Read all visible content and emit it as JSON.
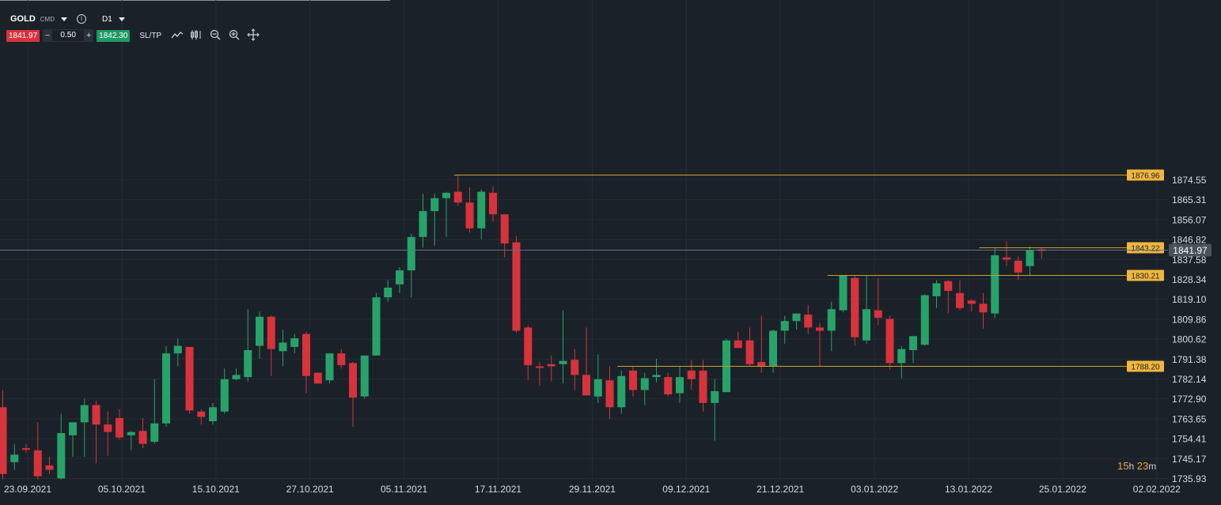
{
  "toolbar": {
    "symbol": "GOLD",
    "instrument_type": "CMD",
    "timeframe": "D1",
    "sell_price": "1841.97",
    "quantity": "0.50",
    "buy_price": "1842.30",
    "sl_tp_label": "SL/TP",
    "tools": [
      "line-chart-icon",
      "indicators-icon",
      "zoom-out-icon",
      "zoom-in-icon",
      "crosshair-icon"
    ]
  },
  "colors": {
    "background": "#1b2129",
    "bull": "#27a36a",
    "bear": "#d8333c",
    "level": "#c9a12a",
    "level_label_bg": "#f0b63d",
    "current_price_label_bg": "#4a525c",
    "grid": "#252c35"
  },
  "countdown": {
    "hours": "15",
    "minutes": "23",
    "h_unit": "h",
    "m_unit": "m"
  },
  "chart_data": {
    "type": "candlestick",
    "y_axis": {
      "range": [
        1735.93,
        1879.5
      ],
      "ticks": [
        "1874.55",
        "1865.31",
        "1856.07",
        "1846.82",
        "1837.58",
        "1828.34",
        "1819.10",
        "1809.86",
        "1800.62",
        "1791.38",
        "1782.14",
        "1772.90",
        "1763.65",
        "1754.41",
        "1745.17",
        "1735.93"
      ]
    },
    "x_axis": {
      "ticks": [
        "23.09.2021",
        "05.10.2021",
        "15.10.2021",
        "27.10.2021",
        "05.11.2021",
        "17.11.2021",
        "29.11.2021",
        "09.12.2021",
        "21.12.2021",
        "03.01.2022",
        "13.01.2022",
        "25.01.2022",
        "02.02.2022"
      ]
    },
    "current_price": "1841.97",
    "levels": [
      {
        "label": "1876.96",
        "value": 1876.96,
        "from_index": 39
      },
      {
        "label": "1843.22",
        "value": 1843.22,
        "from_index": 84
      },
      {
        "label": "1830.21",
        "value": 1830.21,
        "from_index": 71
      },
      {
        "label": "1788.20",
        "value": 1788.2,
        "from_index": 53
      }
    ],
    "candles": [
      {
        "o": 1769.0,
        "h": 1777.0,
        "l": 1735.5,
        "c": 1738.0
      },
      {
        "o": 1743.5,
        "h": 1752.0,
        "l": 1740.0,
        "c": 1747.0
      },
      {
        "o": 1750.0,
        "h": 1752.0,
        "l": 1748.0,
        "c": 1749.5
      },
      {
        "o": 1749.0,
        "h": 1762.0,
        "l": 1735.5,
        "c": 1737.0
      },
      {
        "o": 1742.0,
        "h": 1746.0,
        "l": 1738.0,
        "c": 1740.0
      },
      {
        "o": 1736.0,
        "h": 1766.0,
        "l": 1735.5,
        "c": 1757.0
      },
      {
        "o": 1756.0,
        "h": 1762.0,
        "l": 1746.0,
        "c": 1762.0
      },
      {
        "o": 1762.0,
        "h": 1773.0,
        "l": 1746.0,
        "c": 1770.0
      },
      {
        "o": 1770.0,
        "h": 1772.0,
        "l": 1743.0,
        "c": 1761.0
      },
      {
        "o": 1761.0,
        "h": 1767.0,
        "l": 1746.5,
        "c": 1757.5
      },
      {
        "o": 1764.0,
        "h": 1768.0,
        "l": 1754.0,
        "c": 1755.0
      },
      {
        "o": 1756.0,
        "h": 1758.0,
        "l": 1749.0,
        "c": 1757.5
      },
      {
        "o": 1758.0,
        "h": 1764.0,
        "l": 1750.0,
        "c": 1752.0
      },
      {
        "o": 1753.0,
        "h": 1782.0,
        "l": 1752.0,
        "c": 1761.5
      },
      {
        "o": 1761.5,
        "h": 1797.5,
        "l": 1760.0,
        "c": 1794.0
      },
      {
        "o": 1794.0,
        "h": 1801.0,
        "l": 1788.0,
        "c": 1797.5
      },
      {
        "o": 1797.0,
        "h": 1797.0,
        "l": 1766.0,
        "c": 1767.5
      },
      {
        "o": 1767.0,
        "h": 1768.0,
        "l": 1761.0,
        "c": 1764.5
      },
      {
        "o": 1762.5,
        "h": 1771.0,
        "l": 1761.0,
        "c": 1769.0
      },
      {
        "o": 1767.0,
        "h": 1787.0,
        "l": 1766.0,
        "c": 1782.0
      },
      {
        "o": 1782.0,
        "h": 1787.0,
        "l": 1781.5,
        "c": 1784.0
      },
      {
        "o": 1783.0,
        "h": 1814.5,
        "l": 1781.0,
        "c": 1795.5
      },
      {
        "o": 1797.5,
        "h": 1813.5,
        "l": 1791.5,
        "c": 1811.0
      },
      {
        "o": 1811.0,
        "h": 1811.5,
        "l": 1783.5,
        "c": 1796.0
      },
      {
        "o": 1795.0,
        "h": 1805.0,
        "l": 1788.0,
        "c": 1799.0
      },
      {
        "o": 1797.0,
        "h": 1803.0,
        "l": 1794.0,
        "c": 1801.0
      },
      {
        "o": 1803.0,
        "h": 1804.0,
        "l": 1775.5,
        "c": 1783.5
      },
      {
        "o": 1785.0,
        "h": 1785.0,
        "l": 1780.0,
        "c": 1780.0
      },
      {
        "o": 1781.5,
        "h": 1793.0,
        "l": 1780.0,
        "c": 1794.0
      },
      {
        "o": 1794.0,
        "h": 1796.0,
        "l": 1787.0,
        "c": 1788.5
      },
      {
        "o": 1789.5,
        "h": 1790.0,
        "l": 1760.0,
        "c": 1773.5
      },
      {
        "o": 1774.0,
        "h": 1793.0,
        "l": 1773.0,
        "c": 1793.0
      },
      {
        "o": 1793.0,
        "h": 1822.0,
        "l": 1793.0,
        "c": 1820.0
      },
      {
        "o": 1820.0,
        "h": 1828.0,
        "l": 1818.0,
        "c": 1824.5
      },
      {
        "o": 1826.0,
        "h": 1834.0,
        "l": 1822.0,
        "c": 1832.5
      },
      {
        "o": 1832.5,
        "h": 1849.5,
        "l": 1820.0,
        "c": 1848.0
      },
      {
        "o": 1848.0,
        "h": 1868.0,
        "l": 1843.0,
        "c": 1860.0
      },
      {
        "o": 1860.0,
        "h": 1868.0,
        "l": 1844.0,
        "c": 1866.0
      },
      {
        "o": 1866.0,
        "h": 1869.0,
        "l": 1848.0,
        "c": 1868.5
      },
      {
        "o": 1869.0,
        "h": 1876.96,
        "l": 1862.5,
        "c": 1864.0
      },
      {
        "o": 1864.0,
        "h": 1871.0,
        "l": 1850.0,
        "c": 1852.0
      },
      {
        "o": 1852.0,
        "h": 1870.0,
        "l": 1847.0,
        "c": 1869.0
      },
      {
        "o": 1868.5,
        "h": 1871.5,
        "l": 1855.0,
        "c": 1858.5
      },
      {
        "o": 1858.5,
        "h": 1858.5,
        "l": 1838.5,
        "c": 1845.0
      },
      {
        "o": 1845.5,
        "h": 1848.5,
        "l": 1803.5,
        "c": 1804.5
      },
      {
        "o": 1806.0,
        "h": 1807.0,
        "l": 1781.5,
        "c": 1788.5
      },
      {
        "o": 1788.0,
        "h": 1790.0,
        "l": 1779.0,
        "c": 1787.5
      },
      {
        "o": 1789.0,
        "h": 1793.0,
        "l": 1781.0,
        "c": 1788.0
      },
      {
        "o": 1789.0,
        "h": 1814.0,
        "l": 1780.0,
        "c": 1790.5
      },
      {
        "o": 1791.0,
        "h": 1796.0,
        "l": 1777.0,
        "c": 1784.0
      },
      {
        "o": 1784.0,
        "h": 1806.0,
        "l": 1775.5,
        "c": 1774.5
      },
      {
        "o": 1774.0,
        "h": 1793.5,
        "l": 1771.0,
        "c": 1782.0
      },
      {
        "o": 1781.5,
        "h": 1788.0,
        "l": 1763.5,
        "c": 1769.0
      },
      {
        "o": 1769.0,
        "h": 1786.0,
        "l": 1766.0,
        "c": 1783.5
      },
      {
        "o": 1786.0,
        "h": 1788.0,
        "l": 1774.0,
        "c": 1777.0
      },
      {
        "o": 1777.0,
        "h": 1785.0,
        "l": 1770.0,
        "c": 1782.5
      },
      {
        "o": 1783.0,
        "h": 1791.5,
        "l": 1780.5,
        "c": 1784.0
      },
      {
        "o": 1783.0,
        "h": 1785.0,
        "l": 1774.0,
        "c": 1775.0
      },
      {
        "o": 1775.5,
        "h": 1788.0,
        "l": 1771.0,
        "c": 1783.0
      },
      {
        "o": 1786.0,
        "h": 1791.0,
        "l": 1777.0,
        "c": 1782.0
      },
      {
        "o": 1786.0,
        "h": 1791.0,
        "l": 1767.0,
        "c": 1771.0
      },
      {
        "o": 1771.0,
        "h": 1782.0,
        "l": 1753.5,
        "c": 1776.5
      },
      {
        "o": 1776.0,
        "h": 1801.0,
        "l": 1776.0,
        "c": 1800.0
      },
      {
        "o": 1800.0,
        "h": 1804.0,
        "l": 1796.5,
        "c": 1796.5
      },
      {
        "o": 1800.0,
        "h": 1806.0,
        "l": 1788.0,
        "c": 1789.0
      },
      {
        "o": 1790.0,
        "h": 1811.5,
        "l": 1785.0,
        "c": 1788.0
      },
      {
        "o": 1788.0,
        "h": 1805.0,
        "l": 1785.0,
        "c": 1804.5
      },
      {
        "o": 1804.5,
        "h": 1811.5,
        "l": 1798.5,
        "c": 1809.0
      },
      {
        "o": 1809.0,
        "h": 1812.5,
        "l": 1805.0,
        "c": 1812.5
      },
      {
        "o": 1812.0,
        "h": 1816.5,
        "l": 1803.0,
        "c": 1806.0
      },
      {
        "o": 1806.0,
        "h": 1808.0,
        "l": 1788.0,
        "c": 1804.5
      },
      {
        "o": 1804.5,
        "h": 1818.0,
        "l": 1795.0,
        "c": 1814.5
      },
      {
        "o": 1814.0,
        "h": 1830.21,
        "l": 1813.0,
        "c": 1830.0
      },
      {
        "o": 1829.0,
        "h": 1830.0,
        "l": 1797.5,
        "c": 1801.5
      },
      {
        "o": 1800.0,
        "h": 1830.0,
        "l": 1798.5,
        "c": 1814.5
      },
      {
        "o": 1814.0,
        "h": 1829.0,
        "l": 1807.0,
        "c": 1810.5
      },
      {
        "o": 1810.0,
        "h": 1811.5,
        "l": 1786.5,
        "c": 1789.5
      },
      {
        "o": 1789.5,
        "h": 1797.5,
        "l": 1782.5,
        "c": 1796.0
      },
      {
        "o": 1795.5,
        "h": 1802.0,
        "l": 1789.5,
        "c": 1802.0
      },
      {
        "o": 1798.0,
        "h": 1821.5,
        "l": 1797.5,
        "c": 1821.0
      },
      {
        "o": 1820.5,
        "h": 1828.0,
        "l": 1815.0,
        "c": 1826.5
      },
      {
        "o": 1827.5,
        "h": 1828.0,
        "l": 1812.5,
        "c": 1823.0
      },
      {
        "o": 1822.0,
        "h": 1828.0,
        "l": 1814.0,
        "c": 1815.0
      },
      {
        "o": 1818.5,
        "h": 1819.0,
        "l": 1813.5,
        "c": 1817.0
      },
      {
        "o": 1817.0,
        "h": 1822.0,
        "l": 1805.5,
        "c": 1813.0
      },
      {
        "o": 1812.5,
        "h": 1843.22,
        "l": 1810.5,
        "c": 1839.5
      },
      {
        "o": 1838.5,
        "h": 1846.0,
        "l": 1834.5,
        "c": 1837.5
      },
      {
        "o": 1837.0,
        "h": 1839.0,
        "l": 1828.0,
        "c": 1831.5
      },
      {
        "o": 1834.5,
        "h": 1843.5,
        "l": 1830.0,
        "c": 1842.0
      },
      {
        "o": 1842.3,
        "h": 1843.0,
        "l": 1838.0,
        "c": 1841.97
      }
    ]
  }
}
